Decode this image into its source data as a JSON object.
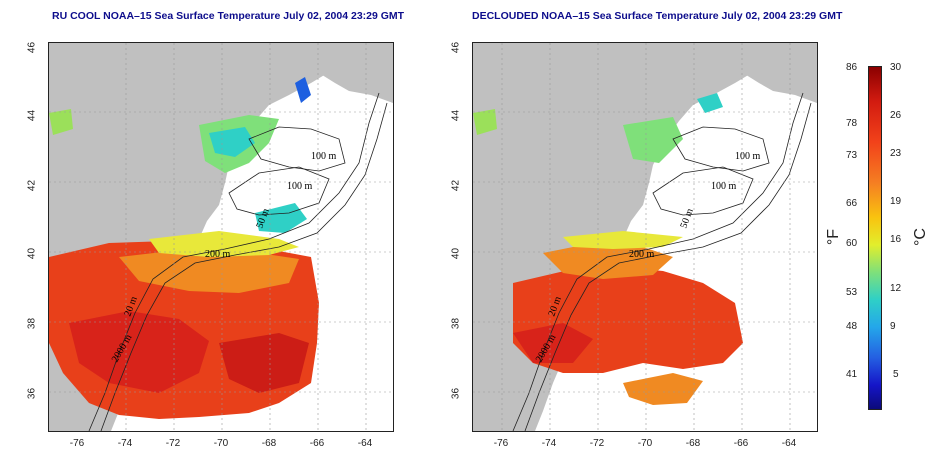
{
  "titles": {
    "left": "RU COOL NOAA–15 Sea Surface Temperature July 02, 2004 23:29 GMT",
    "right": "DECLOUDED NOAA–15 Sea Surface Temperature July 02, 2004 23:29 GMT"
  },
  "axes": {
    "lat_ticks": [
      "46",
      "44",
      "42",
      "40",
      "38",
      "36"
    ],
    "lon_ticks": [
      "-76",
      "-74",
      "-72",
      "-70",
      "-68",
      "-66",
      "-64"
    ]
  },
  "contour_labels": {
    "m100a": "100 m",
    "m100b": "100 m",
    "m200": "200 m",
    "m50": "50 m",
    "m20": "20 m",
    "m2000": "2000 m"
  },
  "colorbar": {
    "fahrenheit": [
      "86",
      "78",
      "73",
      "66",
      "60",
      "53",
      "48",
      "41"
    ],
    "celsius": [
      "30",
      "26",
      "23",
      "19",
      "16",
      "12",
      "9",
      "5"
    ],
    "fahrenheit_unit": "°F",
    "celsius_unit": "°C",
    "range_c": [
      2,
      30
    ]
  },
  "colors": {
    "land": "#c0c0c0",
    "warm": "#e8401a",
    "hot": "#d8231a",
    "orange": "#f08a22",
    "yellow": "#e8e83a",
    "green": "#7fe07a",
    "cyan": "#2fd0c6",
    "blue": "#1d5fe0"
  }
}
